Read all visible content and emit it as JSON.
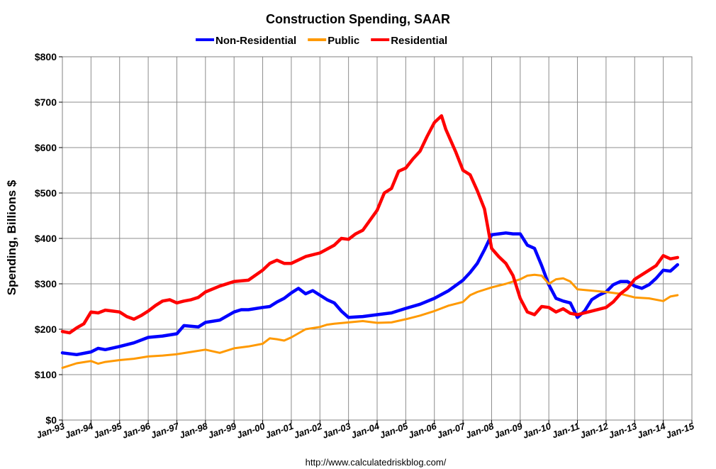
{
  "chart_data": {
    "type": "line",
    "title": "Construction Spending, SAAR",
    "ylabel": "Spending, Billions $",
    "xlabel": "",
    "source": "http://www.calculatedriskblog.com/",
    "ylim": [
      0,
      800
    ],
    "xlim": [
      1993.0,
      2015.0
    ],
    "yticks": [
      0,
      100,
      200,
      300,
      400,
      500,
      600,
      700,
      800
    ],
    "ytick_labels": [
      "$0",
      "$100",
      "$200",
      "$300",
      "$400",
      "$500",
      "$600",
      "$700",
      "$800"
    ],
    "xticks": [
      1993,
      1994,
      1995,
      1996,
      1997,
      1998,
      1999,
      2000,
      2001,
      2002,
      2003,
      2004,
      2005,
      2006,
      2007,
      2008,
      2009,
      2010,
      2011,
      2012,
      2013,
      2014,
      2015
    ],
    "xtick_labels": [
      "Jan-93",
      "Jan-94",
      "Jan-95",
      "Jan-96",
      "Jan-97",
      "Jan-98",
      "Jan-99",
      "Jan-00",
      "Jan-01",
      "Jan-02",
      "Jan-03",
      "Jan-04",
      "Jan-05",
      "Jan-06",
      "Jan-07",
      "Jan-08",
      "Jan-09",
      "Jan-10",
      "Jan-11",
      "Jan-12",
      "Jan-13",
      "Jan-14",
      "Jan-15"
    ],
    "grid": true,
    "legend_position": "top-center",
    "series": [
      {
        "name": "Non-Residential",
        "color": "#0000ff",
        "points": [
          [
            1993.0,
            148
          ],
          [
            1993.5,
            144
          ],
          [
            1994.0,
            150
          ],
          [
            1994.25,
            158
          ],
          [
            1994.5,
            155
          ],
          [
            1995.0,
            162
          ],
          [
            1995.5,
            170
          ],
          [
            1996.0,
            182
          ],
          [
            1996.5,
            185
          ],
          [
            1997.0,
            190
          ],
          [
            1997.25,
            208
          ],
          [
            1997.75,
            205
          ],
          [
            1998.0,
            215
          ],
          [
            1998.5,
            220
          ],
          [
            1999.0,
            238
          ],
          [
            1999.25,
            243
          ],
          [
            1999.5,
            243
          ],
          [
            2000.0,
            248
          ],
          [
            2000.25,
            250
          ],
          [
            2000.5,
            260
          ],
          [
            2000.75,
            268
          ],
          [
            2001.0,
            280
          ],
          [
            2001.25,
            290
          ],
          [
            2001.5,
            278
          ],
          [
            2001.75,
            285
          ],
          [
            2002.0,
            275
          ],
          [
            2002.25,
            265
          ],
          [
            2002.5,
            258
          ],
          [
            2002.75,
            240
          ],
          [
            2003.0,
            226
          ],
          [
            2003.5,
            228
          ],
          [
            2004.0,
            232
          ],
          [
            2004.5,
            236
          ],
          [
            2005.0,
            246
          ],
          [
            2005.5,
            255
          ],
          [
            2006.0,
            268
          ],
          [
            2006.5,
            285
          ],
          [
            2007.0,
            308
          ],
          [
            2007.25,
            325
          ],
          [
            2007.5,
            345
          ],
          [
            2007.75,
            375
          ],
          [
            2008.0,
            408
          ],
          [
            2008.25,
            410
          ],
          [
            2008.5,
            412
          ],
          [
            2008.75,
            410
          ],
          [
            2009.0,
            410
          ],
          [
            2009.25,
            385
          ],
          [
            2009.5,
            378
          ],
          [
            2009.75,
            340
          ],
          [
            2010.0,
            298
          ],
          [
            2010.25,
            268
          ],
          [
            2010.5,
            262
          ],
          [
            2010.75,
            258
          ],
          [
            2011.0,
            226
          ],
          [
            2011.25,
            240
          ],
          [
            2011.5,
            265
          ],
          [
            2011.75,
            275
          ],
          [
            2012.0,
            282
          ],
          [
            2012.25,
            298
          ],
          [
            2012.5,
            305
          ],
          [
            2012.75,
            305
          ],
          [
            2013.0,
            295
          ],
          [
            2013.25,
            290
          ],
          [
            2013.5,
            298
          ],
          [
            2013.75,
            312
          ],
          [
            2014.0,
            330
          ],
          [
            2014.25,
            328
          ],
          [
            2014.5,
            342
          ]
        ]
      },
      {
        "name": "Public",
        "color": "#ff9900",
        "points": [
          [
            1993.0,
            115
          ],
          [
            1993.5,
            125
          ],
          [
            1994.0,
            130
          ],
          [
            1994.25,
            124
          ],
          [
            1994.5,
            128
          ],
          [
            1995.0,
            132
          ],
          [
            1995.5,
            135
          ],
          [
            1996.0,
            140
          ],
          [
            1996.5,
            142
          ],
          [
            1997.0,
            145
          ],
          [
            1997.5,
            150
          ],
          [
            1998.0,
            155
          ],
          [
            1998.5,
            148
          ],
          [
            1999.0,
            158
          ],
          [
            1999.5,
            162
          ],
          [
            2000.0,
            168
          ],
          [
            2000.25,
            180
          ],
          [
            2000.5,
            178
          ],
          [
            2000.75,
            175
          ],
          [
            2001.0,
            182
          ],
          [
            2001.5,
            200
          ],
          [
            2002.0,
            205
          ],
          [
            2002.25,
            210
          ],
          [
            2002.5,
            212
          ],
          [
            2003.0,
            215
          ],
          [
            2003.5,
            218
          ],
          [
            2004.0,
            214
          ],
          [
            2004.5,
            215
          ],
          [
            2005.0,
            222
          ],
          [
            2005.5,
            230
          ],
          [
            2006.0,
            240
          ],
          [
            2006.5,
            252
          ],
          [
            2007.0,
            260
          ],
          [
            2007.25,
            275
          ],
          [
            2007.5,
            282
          ],
          [
            2008.0,
            292
          ],
          [
            2008.5,
            300
          ],
          [
            2009.0,
            310
          ],
          [
            2009.25,
            318
          ],
          [
            2009.5,
            320
          ],
          [
            2009.75,
            318
          ],
          [
            2010.0,
            300
          ],
          [
            2010.25,
            310
          ],
          [
            2010.5,
            312
          ],
          [
            2010.75,
            305
          ],
          [
            2011.0,
            288
          ],
          [
            2011.5,
            285
          ],
          [
            2012.0,
            282
          ],
          [
            2012.5,
            278
          ],
          [
            2013.0,
            270
          ],
          [
            2013.5,
            268
          ],
          [
            2014.0,
            262
          ],
          [
            2014.25,
            272
          ],
          [
            2014.5,
            275
          ]
        ]
      },
      {
        "name": "Residential",
        "color": "#ff0000",
        "points": [
          [
            1993.0,
            195
          ],
          [
            1993.25,
            192
          ],
          [
            1993.5,
            203
          ],
          [
            1993.75,
            212
          ],
          [
            1994.0,
            238
          ],
          [
            1994.25,
            236
          ],
          [
            1994.5,
            242
          ],
          [
            1994.75,
            240
          ],
          [
            1995.0,
            238
          ],
          [
            1995.25,
            228
          ],
          [
            1995.5,
            222
          ],
          [
            1995.75,
            230
          ],
          [
            1996.0,
            240
          ],
          [
            1996.25,
            252
          ],
          [
            1996.5,
            262
          ],
          [
            1996.75,
            265
          ],
          [
            1997.0,
            258
          ],
          [
            1997.25,
            262
          ],
          [
            1997.5,
            265
          ],
          [
            1997.75,
            270
          ],
          [
            1998.0,
            282
          ],
          [
            1998.5,
            295
          ],
          [
            1999.0,
            305
          ],
          [
            1999.5,
            308
          ],
          [
            2000.0,
            330
          ],
          [
            2000.25,
            345
          ],
          [
            2000.5,
            352
          ],
          [
            2000.75,
            345
          ],
          [
            2001.0,
            345
          ],
          [
            2001.5,
            360
          ],
          [
            2002.0,
            368
          ],
          [
            2002.5,
            385
          ],
          [
            2002.75,
            400
          ],
          [
            2003.0,
            398
          ],
          [
            2003.25,
            410
          ],
          [
            2003.5,
            418
          ],
          [
            2003.75,
            440
          ],
          [
            2004.0,
            462
          ],
          [
            2004.25,
            500
          ],
          [
            2004.5,
            510
          ],
          [
            2004.75,
            548
          ],
          [
            2005.0,
            555
          ],
          [
            2005.25,
            575
          ],
          [
            2005.5,
            592
          ],
          [
            2005.75,
            625
          ],
          [
            2006.0,
            655
          ],
          [
            2006.25,
            670
          ],
          [
            2006.4,
            640
          ],
          [
            2006.75,
            590
          ],
          [
            2007.0,
            550
          ],
          [
            2007.25,
            540
          ],
          [
            2007.5,
            505
          ],
          [
            2007.75,
            465
          ],
          [
            2008.0,
            378
          ],
          [
            2008.25,
            360
          ],
          [
            2008.5,
            345
          ],
          [
            2008.75,
            318
          ],
          [
            2009.0,
            268
          ],
          [
            2009.25,
            238
          ],
          [
            2009.5,
            232
          ],
          [
            2009.75,
            250
          ],
          [
            2010.0,
            248
          ],
          [
            2010.25,
            238
          ],
          [
            2010.5,
            245
          ],
          [
            2010.75,
            235
          ],
          [
            2011.0,
            232
          ],
          [
            2011.5,
            240
          ],
          [
            2012.0,
            248
          ],
          [
            2012.25,
            260
          ],
          [
            2012.5,
            278
          ],
          [
            2012.75,
            290
          ],
          [
            2013.0,
            310
          ],
          [
            2013.5,
            330
          ],
          [
            2013.75,
            340
          ],
          [
            2014.0,
            362
          ],
          [
            2014.25,
            355
          ],
          [
            2014.5,
            358
          ]
        ]
      }
    ]
  }
}
